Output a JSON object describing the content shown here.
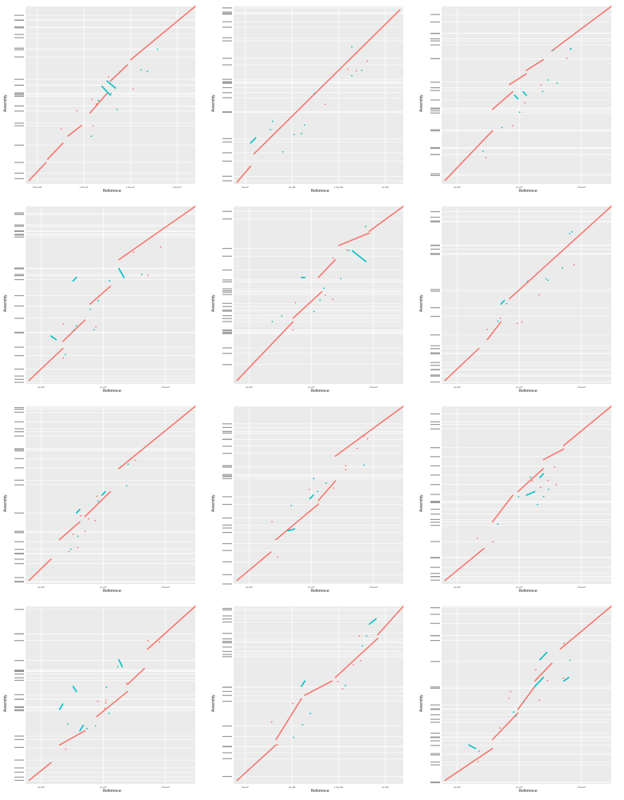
{
  "chart_data": [
    {
      "type": "scatter",
      "xlabel": "Reference",
      "ylabel": "Assembly",
      "xticks": [
        "5.0e+06",
        "1.0e+07",
        "1.5e+07",
        "2.0e+07"
      ],
      "series": [
        {
          "color": "#F8766D",
          "segments": [
            [
              0.02,
              0.02,
              0.12,
              0.12
            ],
            [
              0.13,
              0.14,
              0.22,
              0.23
            ],
            [
              0.25,
              0.27,
              0.33,
              0.33
            ],
            [
              0.38,
              0.4,
              0.48,
              0.51
            ],
            [
              0.5,
              0.58,
              0.6,
              0.67
            ],
            [
              0.62,
              0.7,
              1.0,
              1.0
            ]
          ]
        },
        {
          "color": "#00BFC4",
          "segments": [
            [
              0.45,
              0.55,
              0.5,
              0.5
            ],
            [
              0.48,
              0.58,
              0.53,
              0.54
            ]
          ]
        }
      ]
    },
    {
      "type": "scatter",
      "xlabel": "Reference",
      "ylabel": "Assembly",
      "xticks": [
        "5e+07",
        "1e+08",
        "1.5e+08",
        "2e+08"
      ],
      "series": [
        {
          "color": "#F8766D",
          "segments": [
            [
              0.02,
              0.01,
              0.1,
              0.1
            ],
            [
              0.12,
              0.17,
              0.98,
              0.98
            ]
          ]
        },
        {
          "color": "#00BFC4",
          "segments": [
            [
              0.1,
              0.23,
              0.13,
              0.26
            ]
          ]
        }
      ]
    },
    {
      "type": "scatter",
      "xlabel": "Reference",
      "ylabel": "Assembly",
      "xticks": [
        "5e+06",
        "1e+07",
        "1.5e+07"
      ],
      "series": [
        {
          "color": "#F8766D",
          "segments": [
            [
              0.02,
              0.02,
              0.3,
              0.3
            ],
            [
              0.3,
              0.42,
              0.42,
              0.52
            ],
            [
              0.4,
              0.56,
              0.5,
              0.62
            ],
            [
              0.5,
              0.64,
              0.6,
              0.7
            ],
            [
              0.65,
              0.75,
              1.0,
              1.0
            ]
          ]
        },
        {
          "color": "#00BFC4",
          "segments": [
            [
              0.43,
              0.5,
              0.45,
              0.48
            ],
            [
              0.48,
              0.52,
              0.5,
              0.5
            ]
          ]
        }
      ]
    },
    {
      "type": "scatter",
      "xlabel": "Reference",
      "ylabel": "Assembly",
      "xticks": [
        "5e+06",
        "1e+07",
        "1.5e+07"
      ],
      "series": [
        {
          "color": "#F8766D",
          "segments": [
            [
              0.02,
              0.02,
              0.22,
              0.2
            ],
            [
              0.22,
              0.24,
              0.35,
              0.36
            ],
            [
              0.38,
              0.45,
              0.5,
              0.55
            ],
            [
              0.55,
              0.7,
              1.0,
              1.0
            ]
          ]
        },
        {
          "color": "#00BFC4",
          "segments": [
            [
              0.15,
              0.27,
              0.18,
              0.25
            ],
            [
              0.55,
              0.65,
              0.58,
              0.6
            ],
            [
              0.28,
              0.58,
              0.3,
              0.6
            ]
          ]
        }
      ]
    },
    {
      "type": "scatter",
      "xlabel": "Reference",
      "ylabel": "Assembly",
      "xticks": [
        "5e+06",
        "1e+07",
        "1.5e+07"
      ],
      "series": [
        {
          "color": "#F8766D",
          "segments": [
            [
              0.02,
              0.02,
              0.35,
              0.35
            ],
            [
              0.35,
              0.37,
              0.52,
              0.52
            ],
            [
              0.5,
              0.6,
              0.6,
              0.7
            ],
            [
              0.62,
              0.78,
              0.8,
              0.85
            ],
            [
              0.8,
              0.86,
              1.0,
              1.0
            ]
          ]
        },
        {
          "color": "#00BFC4",
          "segments": [
            [
              0.7,
              0.75,
              0.78,
              0.69
            ],
            [
              0.4,
              0.6,
              0.42,
              0.6
            ]
          ]
        }
      ]
    },
    {
      "type": "scatter",
      "xlabel": "Reference",
      "ylabel": "Assembly",
      "xticks": [
        "5e+06",
        "1e+07",
        "1.5e+07"
      ],
      "series": [
        {
          "color": "#F8766D",
          "segments": [
            [
              0.02,
              0.02,
              0.22,
              0.2
            ],
            [
              0.27,
              0.25,
              0.35,
              0.35
            ],
            [
              0.4,
              0.48,
              1.0,
              1.0
            ]
          ]
        },
        {
          "color": "#00BFC4",
          "segments": [
            [
              0.35,
              0.45,
              0.37,
              0.47
            ]
          ]
        }
      ]
    },
    {
      "type": "scatter",
      "xlabel": "Reference",
      "ylabel": "Assembly",
      "xticks": [
        "5e+06",
        "1e+07",
        "1.5e+07"
      ],
      "series": [
        {
          "color": "#F8766D",
          "segments": [
            [
              0.02,
              0.02,
              0.15,
              0.14
            ],
            [
              0.2,
              0.25,
              0.32,
              0.35
            ],
            [
              0.35,
              0.38,
              0.5,
              0.52
            ],
            [
              0.55,
              0.65,
              1.0,
              1.0
            ]
          ]
        },
        {
          "color": "#00BFC4",
          "segments": [
            [
              0.3,
              0.4,
              0.32,
              0.42
            ],
            [
              0.45,
              0.5,
              0.47,
              0.52
            ]
          ]
        }
      ]
    },
    {
      "type": "scatter",
      "xlabel": "Reference",
      "ylabel": "Assembly",
      "xticks": [
        "5e+06",
        "1e+07",
        "1.5e+07"
      ],
      "series": [
        {
          "color": "#F8766D",
          "segments": [
            [
              0.02,
              0.02,
              0.22,
              0.18
            ],
            [
              0.25,
              0.25,
              0.5,
              0.45
            ],
            [
              0.5,
              0.47,
              0.6,
              0.58
            ],
            [
              0.6,
              0.72,
              1.0,
              1.0
            ]
          ]
        },
        {
          "color": "#00BFC4",
          "segments": [
            [
              0.32,
              0.3,
              0.36,
              0.31
            ],
            [
              0.45,
              0.48,
              0.47,
              0.5
            ]
          ]
        }
      ]
    },
    {
      "type": "scatter",
      "xlabel": "Reference",
      "ylabel": "Assembly",
      "xticks": [
        "5e+06",
        "1e+07",
        "1.5e+07"
      ],
      "series": [
        {
          "color": "#F8766D",
          "segments": [
            [
              0.02,
              0.02,
              0.25,
              0.2
            ],
            [
              0.3,
              0.35,
              0.42,
              0.5
            ],
            [
              0.45,
              0.52,
              0.6,
              0.65
            ],
            [
              0.6,
              0.7,
              0.72,
              0.76
            ],
            [
              0.72,
              0.78,
              1.0,
              1.0
            ]
          ]
        },
        {
          "color": "#00BFC4",
          "segments": [
            [
              0.5,
              0.5,
              0.55,
              0.52
            ],
            [
              0.58,
              0.6,
              0.6,
              0.62
            ]
          ]
        }
      ]
    },
    {
      "type": "scatter",
      "xlabel": "Reference",
      "ylabel": "Assembly",
      "xticks": [
        "5e+06",
        "1e+07",
        "1.5e+07"
      ],
      "series": [
        {
          "color": "#F8766D",
          "segments": [
            [
              0.02,
              0.02,
              0.15,
              0.12
            ],
            [
              0.2,
              0.22,
              0.35,
              0.3
            ],
            [
              0.42,
              0.38,
              0.6,
              0.52
            ],
            [
              0.6,
              0.56,
              0.7,
              0.65
            ],
            [
              0.72,
              0.76,
              1.0,
              1.0
            ]
          ]
        },
        {
          "color": "#00BFC4",
          "segments": [
            [
              0.28,
              0.55,
              0.3,
              0.52
            ],
            [
              0.55,
              0.7,
              0.57,
              0.66
            ],
            [
              0.32,
              0.3,
              0.34,
              0.33
            ],
            [
              0.2,
              0.42,
              0.22,
              0.45
            ]
          ]
        }
      ]
    },
    {
      "type": "scatter",
      "xlabel": "Reference",
      "ylabel": "Assembly",
      "xticks": [
        "5e+07",
        "1e+08",
        "1.5e+08",
        "2e+08"
      ],
      "series": [
        {
          "color": "#F8766D",
          "segments": [
            [
              0.02,
              0.02,
              0.25,
              0.22
            ],
            [
              0.25,
              0.25,
              0.4,
              0.48
            ],
            [
              0.42,
              0.5,
              0.58,
              0.58
            ],
            [
              0.6,
              0.6,
              0.85,
              0.82
            ],
            [
              0.85,
              0.84,
              1.0,
              1.0
            ]
          ]
        },
        {
          "color": "#00BFC4",
          "segments": [
            [
              0.8,
              0.9,
              0.84,
              0.93
            ],
            [
              0.4,
              0.55,
              0.42,
              0.58
            ]
          ]
        }
      ]
    },
    {
      "type": "scatter",
      "xlabel": "Reference",
      "ylabel": "Assembly",
      "xticks": [
        "5e+06",
        "1e+07",
        "1.5e+07"
      ],
      "series": [
        {
          "color": "#F8766D",
          "segments": [
            [
              0.02,
              0.02,
              0.3,
              0.2
            ],
            [
              0.3,
              0.25,
              0.45,
              0.4
            ],
            [
              0.45,
              0.42,
              0.55,
              0.55
            ],
            [
              0.55,
              0.58,
              0.65,
              0.68
            ],
            [
              0.7,
              0.76,
              1.0,
              1.0
            ]
          ]
        },
        {
          "color": "#00BFC4",
          "segments": [
            [
              0.16,
              0.22,
              0.2,
              0.2
            ],
            [
              0.58,
              0.7,
              0.62,
              0.74
            ],
            [
              0.55,
              0.55,
              0.6,
              0.6
            ],
            [
              0.72,
              0.58,
              0.75,
              0.6
            ]
          ]
        }
      ]
    }
  ]
}
